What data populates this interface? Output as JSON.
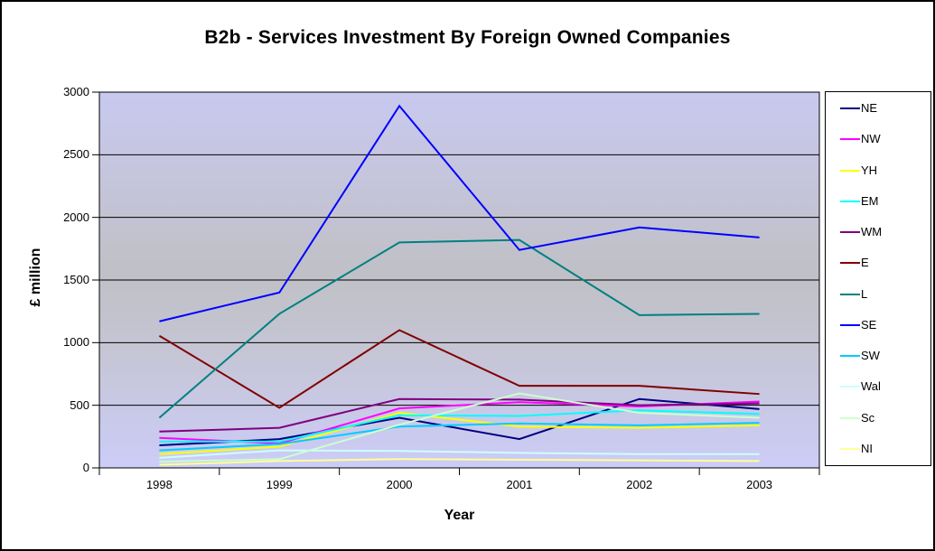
{
  "chart_data": {
    "type": "line",
    "title": "B2b - Services Investment By Foreign Owned Companies",
    "xlabel": "Year",
    "ylabel": "£ million",
    "categories": [
      "1998",
      "1999",
      "2000",
      "2001",
      "2002",
      "2003"
    ],
    "y_ticks": [
      "0",
      "500",
      "1000",
      "1500",
      "2000",
      "2500",
      "3000"
    ],
    "ylim": [
      0,
      3000
    ],
    "grid": true,
    "legend_position": "right",
    "series": [
      {
        "name": "NE",
        "color": "#000080",
        "values": [
          180,
          230,
          400,
          230,
          550,
          470
        ]
      },
      {
        "name": "NW",
        "color": "#FF00FF",
        "values": [
          240,
          195,
          475,
          525,
          490,
          530
        ]
      },
      {
        "name": "YH",
        "color": "#FFFF00",
        "values": [
          110,
          170,
          440,
          330,
          320,
          340
        ]
      },
      {
        "name": "EM",
        "color": "#00FFFF",
        "values": [
          210,
          210,
          420,
          415,
          460,
          430
        ]
      },
      {
        "name": "WM",
        "color": "#800080",
        "values": [
          290,
          320,
          550,
          545,
          500,
          515
        ]
      },
      {
        "name": "E",
        "color": "#800000",
        "values": [
          1055,
          480,
          1100,
          655,
          655,
          590
        ]
      },
      {
        "name": "L",
        "color": "#008080",
        "values": [
          400,
          1230,
          1800,
          1820,
          1220,
          1230
        ]
      },
      {
        "name": "SE",
        "color": "#0000FF",
        "values": [
          1170,
          1400,
          2890,
          1740,
          1920,
          1840
        ]
      },
      {
        "name": "SW",
        "color": "#00CCFF",
        "values": [
          140,
          190,
          330,
          355,
          340,
          360
        ]
      },
      {
        "name": "Wal",
        "color": "#CCFFFF",
        "values": [
          80,
          140,
          135,
          120,
          110,
          110
        ]
      },
      {
        "name": "Sc",
        "color": "#CCFFCC",
        "values": [
          50,
          70,
          345,
          595,
          440,
          400
        ]
      },
      {
        "name": "NI",
        "color": "#FFFF99",
        "values": [
          25,
          55,
          70,
          65,
          60,
          55
        ]
      }
    ]
  }
}
